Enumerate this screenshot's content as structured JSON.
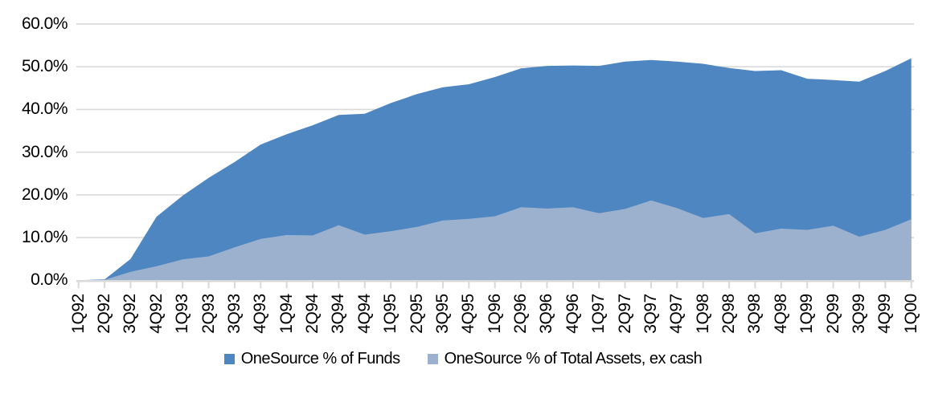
{
  "chart_data": {
    "type": "area",
    "title": "",
    "xlabel": "",
    "ylabel": "",
    "ylim": [
      0,
      60
    ],
    "grid": true,
    "legend_position": "bottom",
    "overlapping_areas": true,
    "y_ticks": [
      "0.0%",
      "10.0%",
      "20.0%",
      "30.0%",
      "40.0%",
      "50.0%",
      "60.0%"
    ],
    "y_tick_values": [
      0,
      10,
      20,
      30,
      40,
      50,
      60
    ],
    "categories": [
      "1Q92",
      "2Q92",
      "3Q92",
      "4Q92",
      "1Q93",
      "2Q93",
      "3Q93",
      "4Q93",
      "1Q94",
      "2Q94",
      "3Q94",
      "4Q94",
      "1Q95",
      "2Q95",
      "3Q95",
      "4Q95",
      "1Q96",
      "2Q96",
      "3Q96",
      "4Q96",
      "1Q97",
      "2Q97",
      "3Q97",
      "4Q97",
      "1Q98",
      "2Q98",
      "3Q98",
      "4Q98",
      "1Q99",
      "2Q99",
      "3Q99",
      "4Q99",
      "1Q00"
    ],
    "series": [
      {
        "name": "OneSource % of Funds",
        "color": "#4d86c0",
        "values": [
          0.0,
          0.2,
          5.0,
          14.9,
          19.8,
          24.0,
          27.7,
          31.8,
          34.2,
          36.3,
          38.7,
          39.0,
          41.5,
          43.6,
          45.2,
          45.9,
          47.6,
          49.6,
          50.2,
          50.3,
          50.2,
          51.2,
          51.6,
          51.2,
          50.7,
          49.7,
          49.0,
          49.2,
          47.2,
          46.9,
          46.5,
          49.0,
          52.0
        ]
      },
      {
        "name": "OneSource % of Total Assets, ex cash",
        "color": "#9bb1ce",
        "values": [
          0.0,
          0.1,
          2.0,
          3.3,
          4.9,
          5.6,
          7.7,
          9.7,
          10.6,
          10.5,
          12.9,
          10.7,
          11.5,
          12.5,
          14.0,
          14.4,
          15.0,
          17.1,
          16.8,
          17.1,
          15.7,
          16.7,
          18.7,
          16.9,
          14.6,
          15.5,
          11.0,
          12.1,
          11.8,
          12.8,
          10.2,
          11.8,
          14.3
        ]
      }
    ],
    "grid_color": "#d9d9d9",
    "axis_color": "#d9d9d9",
    "text_color": "#000000"
  }
}
